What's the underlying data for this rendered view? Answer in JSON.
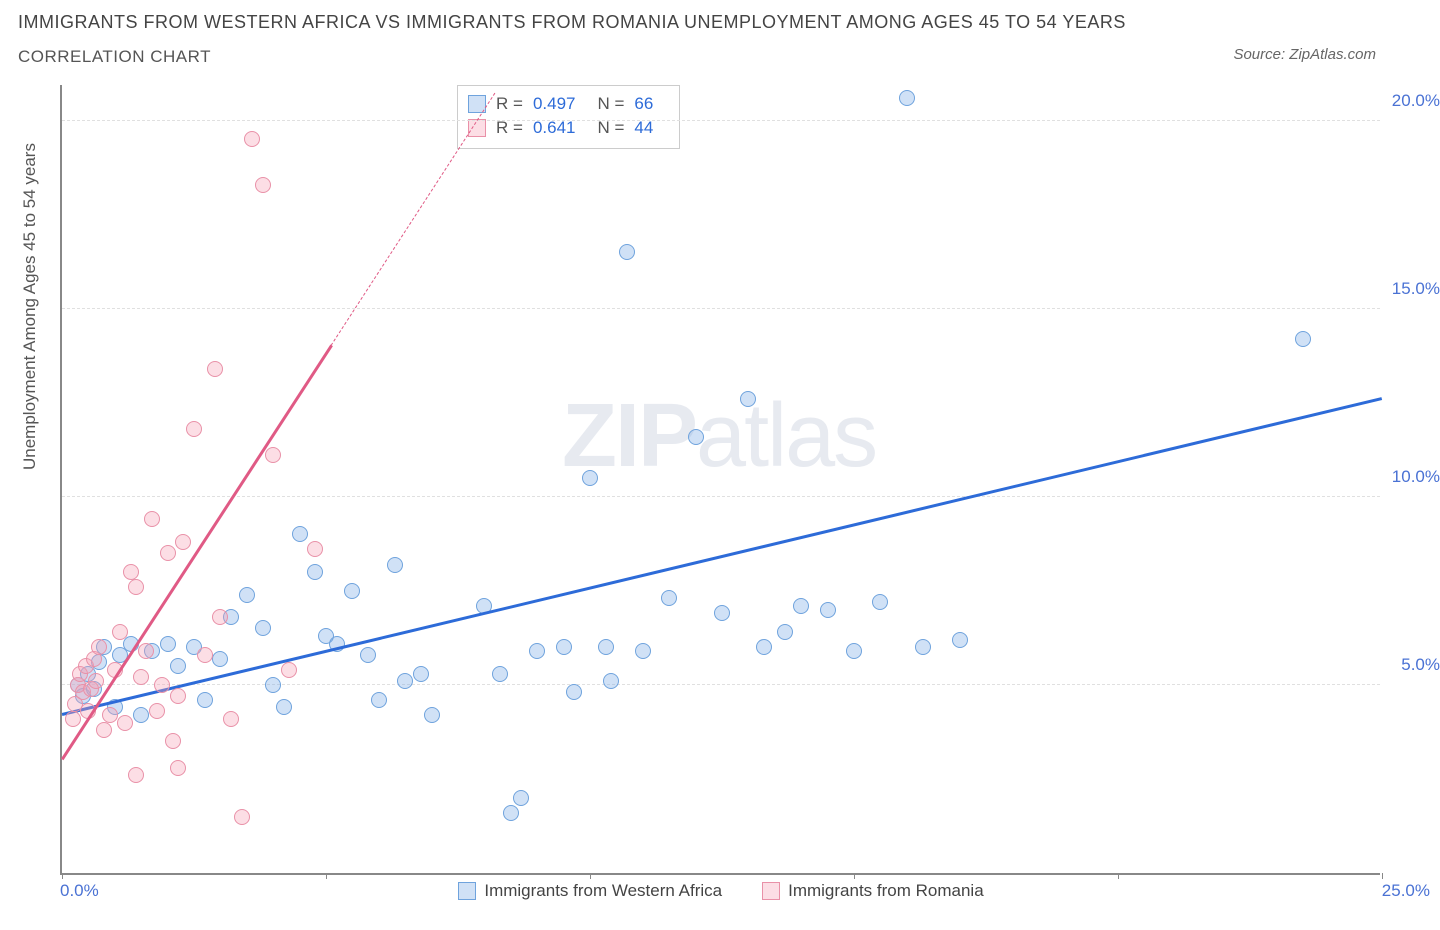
{
  "title": "IMMIGRANTS FROM WESTERN AFRICA VS IMMIGRANTS FROM ROMANIA UNEMPLOYMENT AMONG AGES 45 TO 54 YEARS",
  "subtitle": "CORRELATION CHART",
  "source": "Source: ZipAtlas.com",
  "ylabel": "Unemployment Among Ages 45 to 54 years",
  "watermark_a": "ZIP",
  "watermark_b": "atlas",
  "chart": {
    "type": "scatter",
    "xlim": [
      0,
      25
    ],
    "ylim": [
      0,
      21
    ],
    "grid_y": [
      5,
      10,
      15,
      20
    ],
    "grid_color": "#e0e0e0",
    "ytick_labels": [
      "5.0%",
      "10.0%",
      "15.0%",
      "20.0%"
    ],
    "xticks": [
      0,
      5,
      10,
      15,
      20,
      25
    ],
    "x_origin_label": "0.0%",
    "x_max_label": "25.0%",
    "axis_color": "#888888",
    "background_color": "#ffffff",
    "tick_label_color": "#4a72d4",
    "point_radius": 8
  },
  "series": [
    {
      "name": "Immigrants from Western Africa",
      "fill": "rgba(120,170,230,0.35)",
      "stroke": "#6fa3dd",
      "line_color": "#2d6bd8",
      "R": "0.497",
      "N": "66",
      "regression": {
        "x1": 0,
        "y1": 4.2,
        "x2": 25,
        "y2": 12.6
      },
      "points": [
        [
          0.3,
          5.0
        ],
        [
          0.4,
          4.7
        ],
        [
          0.5,
          5.3
        ],
        [
          0.6,
          4.9
        ],
        [
          0.7,
          5.6
        ],
        [
          0.8,
          6.0
        ],
        [
          1.0,
          4.4
        ],
        [
          1.1,
          5.8
        ],
        [
          1.3,
          6.1
        ],
        [
          1.5,
          4.2
        ],
        [
          1.7,
          5.9
        ],
        [
          2.0,
          6.1
        ],
        [
          2.2,
          5.5
        ],
        [
          2.5,
          6.0
        ],
        [
          2.7,
          4.6
        ],
        [
          3.0,
          5.7
        ],
        [
          3.2,
          6.8
        ],
        [
          3.5,
          7.4
        ],
        [
          3.8,
          6.5
        ],
        [
          4.0,
          5.0
        ],
        [
          4.2,
          4.4
        ],
        [
          4.5,
          9.0
        ],
        [
          4.8,
          8.0
        ],
        [
          5.0,
          6.3
        ],
        [
          5.2,
          6.1
        ],
        [
          5.5,
          7.5
        ],
        [
          5.8,
          5.8
        ],
        [
          6.0,
          4.6
        ],
        [
          6.3,
          8.2
        ],
        [
          6.5,
          5.1
        ],
        [
          6.8,
          5.3
        ],
        [
          7.0,
          4.2
        ],
        [
          8.0,
          7.1
        ],
        [
          8.3,
          5.3
        ],
        [
          8.5,
          1.6
        ],
        [
          8.7,
          2.0
        ],
        [
          9.0,
          5.9
        ],
        [
          9.5,
          6.0
        ],
        [
          9.7,
          4.8
        ],
        [
          10.0,
          10.5
        ],
        [
          10.3,
          6.0
        ],
        [
          10.4,
          5.1
        ],
        [
          10.7,
          16.5
        ],
        [
          11.0,
          5.9
        ],
        [
          11.5,
          7.3
        ],
        [
          12.0,
          11.6
        ],
        [
          12.5,
          6.9
        ],
        [
          13.0,
          12.6
        ],
        [
          13.3,
          6.0
        ],
        [
          13.7,
          6.4
        ],
        [
          14.0,
          7.1
        ],
        [
          14.5,
          7.0
        ],
        [
          15.0,
          5.9
        ],
        [
          15.5,
          7.2
        ],
        [
          16.0,
          20.6
        ],
        [
          16.3,
          6.0
        ],
        [
          17.0,
          6.2
        ],
        [
          23.5,
          14.2
        ]
      ]
    },
    {
      "name": "Immigrants from Romania",
      "fill": "rgba(245,160,180,0.35)",
      "stroke": "#e991a8",
      "line_color": "#e05a85",
      "R": "0.641",
      "N": "44",
      "regression": {
        "x1": 0,
        "y1": 3.0,
        "x2": 5.1,
        "y2": 14.0
      },
      "regression_dash": {
        "x1": 5.1,
        "y1": 14.0,
        "x2": 8.2,
        "y2": 20.7
      },
      "points": [
        [
          0.2,
          4.1
        ],
        [
          0.25,
          4.5
        ],
        [
          0.3,
          5.0
        ],
        [
          0.35,
          5.3
        ],
        [
          0.4,
          4.8
        ],
        [
          0.45,
          5.5
        ],
        [
          0.5,
          4.3
        ],
        [
          0.55,
          4.9
        ],
        [
          0.6,
          5.7
        ],
        [
          0.65,
          5.1
        ],
        [
          0.7,
          6.0
        ],
        [
          0.8,
          3.8
        ],
        [
          0.9,
          4.2
        ],
        [
          1.0,
          5.4
        ],
        [
          1.1,
          6.4
        ],
        [
          1.2,
          4.0
        ],
        [
          1.3,
          8.0
        ],
        [
          1.4,
          7.6
        ],
        [
          1.5,
          5.2
        ],
        [
          1.6,
          5.9
        ],
        [
          1.7,
          9.4
        ],
        [
          1.8,
          4.3
        ],
        [
          1.9,
          5.0
        ],
        [
          2.0,
          8.5
        ],
        [
          2.1,
          3.5
        ],
        [
          2.2,
          4.7
        ],
        [
          2.3,
          8.8
        ],
        [
          2.5,
          11.8
        ],
        [
          2.7,
          5.8
        ],
        [
          2.9,
          13.4
        ],
        [
          3.0,
          6.8
        ],
        [
          3.2,
          4.1
        ],
        [
          3.4,
          1.5
        ],
        [
          3.6,
          19.5
        ],
        [
          3.8,
          18.3
        ],
        [
          4.0,
          11.1
        ],
        [
          4.3,
          5.4
        ],
        [
          4.8,
          8.6
        ],
        [
          2.2,
          2.8
        ],
        [
          1.4,
          2.6
        ]
      ]
    }
  ],
  "legend_bottom": [
    {
      "label": "Immigrants from Western Africa",
      "fill": "rgba(120,170,230,0.35)",
      "stroke": "#6fa3dd"
    },
    {
      "label": "Immigrants from Romania",
      "fill": "rgba(245,160,180,0.35)",
      "stroke": "#e991a8"
    }
  ]
}
